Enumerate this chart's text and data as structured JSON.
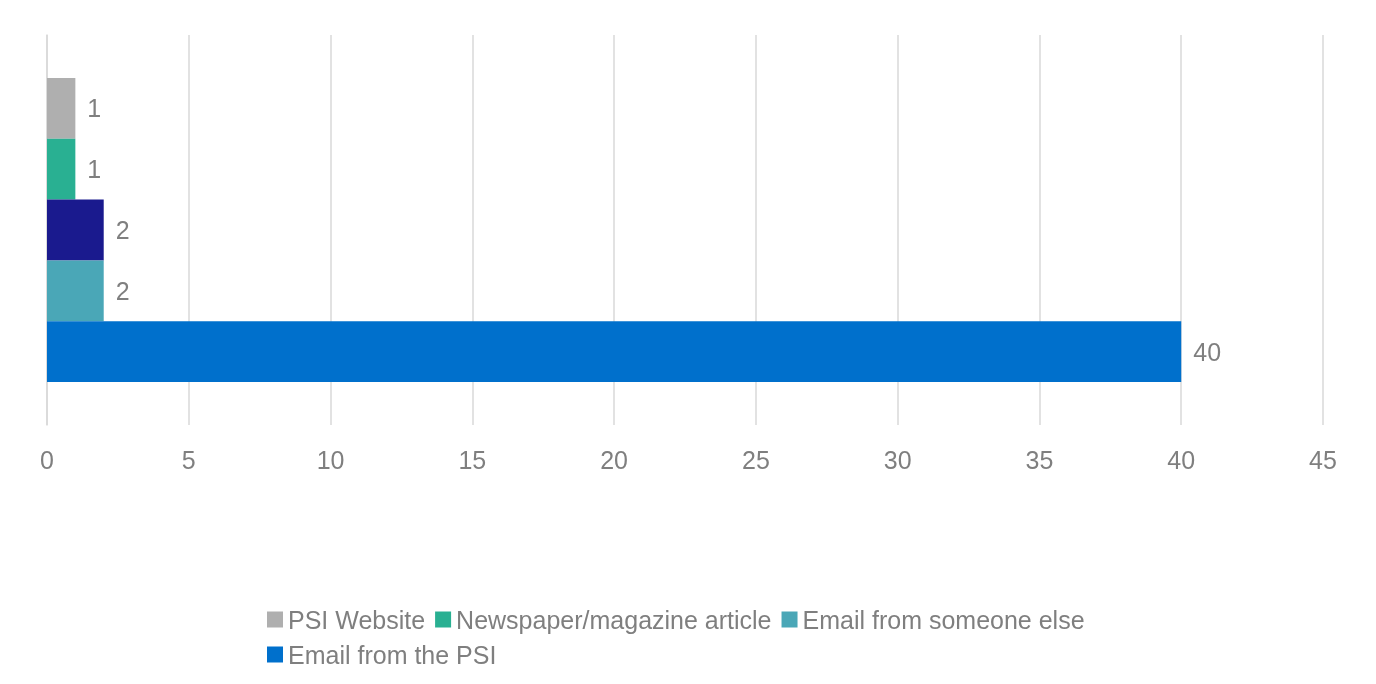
{
  "chart_data": {
    "type": "bar",
    "orientation": "horizontal",
    "categories": [
      null
    ],
    "series": [
      {
        "name": "PSI Website",
        "color": "#afafaf",
        "values": [
          1
        ]
      },
      {
        "name": "Newspaper/magazine article",
        "color": "#29b092",
        "values": [
          1
        ]
      },
      {
        "color": "#1a1a8e",
        "values": [
          2
        ]
      },
      {
        "name": "Email from someone else",
        "color": "#4aa7b7",
        "values": [
          2
        ]
      },
      {
        "name": "Email from the PSI",
        "color": "#0070cc",
        "values": [
          40
        ]
      }
    ],
    "xlim": [
      0,
      45
    ],
    "xticks": [
      0,
      5,
      10,
      15,
      20,
      25,
      30,
      35,
      40,
      45
    ],
    "grid": "x",
    "legend": "bottom",
    "data_labels": true
  }
}
